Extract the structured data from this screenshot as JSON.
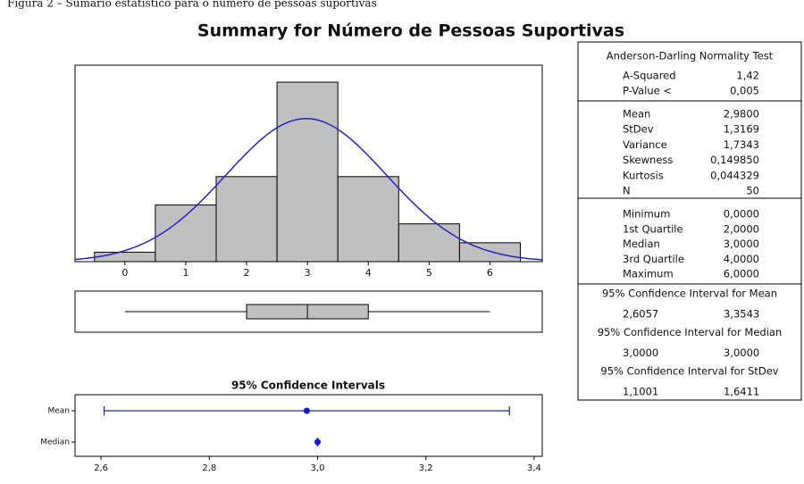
{
  "caption": "Figura 2 – Sumário estatístico para o número de pessoas suportivas",
  "title": "Summary for Número de Pessoas Suportivas",
  "chart_data": [
    {
      "type": "histogram",
      "bins": [
        -0.5,
        0.5,
        1.5,
        2.5,
        3.5,
        4.5,
        5.5,
        6.5
      ],
      "values": [
        1,
        6,
        9,
        19,
        9,
        4,
        2
      ],
      "color": "#c0c0c0",
      "curve_color": "#2424c8",
      "xlim": [
        -0.82,
        6.86
      ],
      "xticks": [
        0,
        1,
        2,
        3,
        4,
        5,
        6
      ],
      "ylim": [
        0,
        20.8
      ]
    },
    {
      "type": "boxplot",
      "color": "#c0c0c0",
      "xlim": [
        -0.82,
        6.86
      ]
    },
    {
      "type": "interval",
      "title": "95% Confidence Intervals",
      "categories": [
        "Mean",
        "Median"
      ],
      "color": "#1f2f9f",
      "point_color": "#1010e0",
      "xlim": [
        2.552,
        3.415
      ],
      "xticks": [
        {
          "value": 2.6,
          "label": "2,6"
        },
        {
          "value": 2.8,
          "label": "2,8"
        },
        {
          "value": 3.0,
          "label": "3,0"
        },
        {
          "value": 3.2,
          "label": "3,2"
        },
        {
          "value": 3.4,
          "label": "3,4"
        }
      ]
    }
  ],
  "stats": {
    "normality": {
      "title": "Anderson-Darling Normality Test",
      "rows": [
        {
          "name": "A-Squared",
          "value": 1.42,
          "label": "1,42"
        },
        {
          "name": "P-Value <",
          "value": 0.005,
          "label": "0,005"
        }
      ]
    },
    "moments": {
      "rows": [
        {
          "name": "Mean",
          "value": 2.98,
          "label": "2,9800"
        },
        {
          "name": "StDev",
          "value": 1.3169,
          "label": "1,3169"
        },
        {
          "name": "Variance",
          "value": 1.7343,
          "label": "1,7343"
        },
        {
          "name": "Skewness",
          "value": 0.14985,
          "label": "0,149850"
        },
        {
          "name": "Kurtosis",
          "value": 0.044329,
          "label": "0,044329"
        },
        {
          "name": "N",
          "value": 50,
          "label": "50"
        }
      ]
    },
    "quantiles": {
      "rows": [
        {
          "name": "Minimum",
          "value": 0,
          "label": "0,0000"
        },
        {
          "name": "1st Quartile",
          "value": 2,
          "label": "2,0000"
        },
        {
          "name": "Median",
          "value": 3,
          "label": "3,0000"
        },
        {
          "name": "3rd Quartile",
          "value": 4,
          "label": "4,0000"
        },
        {
          "name": "Maximum",
          "value": 6,
          "label": "6,0000"
        }
      ]
    },
    "intervals": [
      {
        "title": "95% Confidence Interval for Mean",
        "lower": {
          "value": 2.6057,
          "label": "2,6057"
        },
        "upper": {
          "value": 3.3543,
          "label": "3,3543"
        }
      },
      {
        "title": "95% Confidence Interval for Median",
        "lower": {
          "value": 3.0,
          "label": "3,0000"
        },
        "upper": {
          "value": 3.0,
          "label": "3,0000"
        }
      },
      {
        "title": "95% Confidence Interval for StDev",
        "lower": {
          "value": 1.1001,
          "label": "1,1001"
        },
        "upper": {
          "value": 1.6411,
          "label": "1,6411"
        }
      }
    ]
  }
}
